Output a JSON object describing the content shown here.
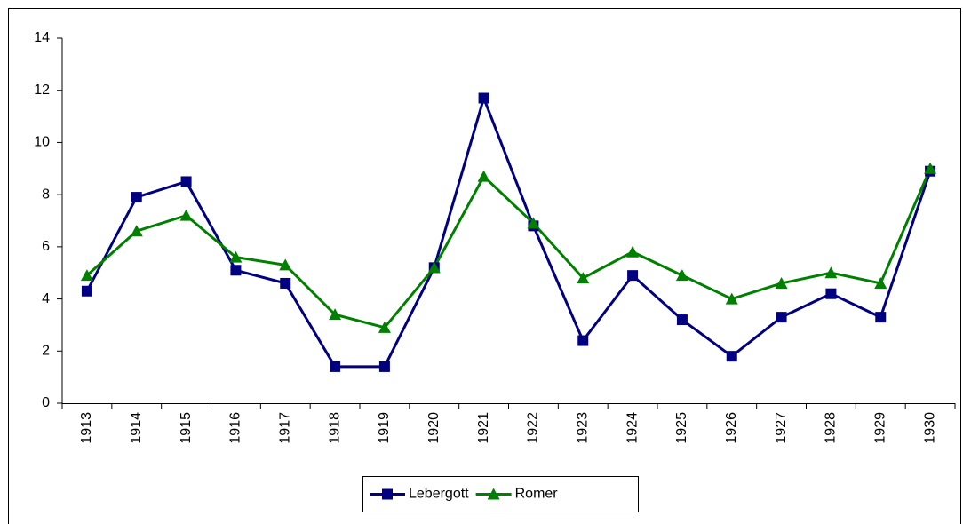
{
  "chart_data": {
    "type": "line",
    "categories": [
      "1913",
      "1914",
      "1915",
      "1916",
      "1917",
      "1918",
      "1919",
      "1920",
      "1921",
      "1922",
      "1923",
      "1924",
      "1925",
      "1926",
      "1927",
      "1928",
      "1929",
      "1930"
    ],
    "series": [
      {
        "name": "Lebergott",
        "color": "#000080",
        "marker": "square",
        "values": [
          4.3,
          7.9,
          8.5,
          5.1,
          4.6,
          1.4,
          1.4,
          5.2,
          11.7,
          6.8,
          2.4,
          4.9,
          3.2,
          1.8,
          3.3,
          4.2,
          3.3,
          8.9
        ]
      },
      {
        "name": "Romer",
        "color": "#008000",
        "marker": "triangle",
        "values": [
          4.9,
          6.6,
          7.2,
          5.6,
          5.3,
          3.4,
          2.9,
          5.2,
          8.7,
          6.9,
          4.8,
          5.8,
          4.9,
          4.0,
          4.6,
          5.0,
          4.6,
          9.0
        ]
      }
    ],
    "ylim": [
      0,
      14
    ],
    "yticks": [
      0,
      2,
      4,
      6,
      8,
      10,
      12,
      14
    ],
    "grid": false,
    "legend": "bottom"
  }
}
